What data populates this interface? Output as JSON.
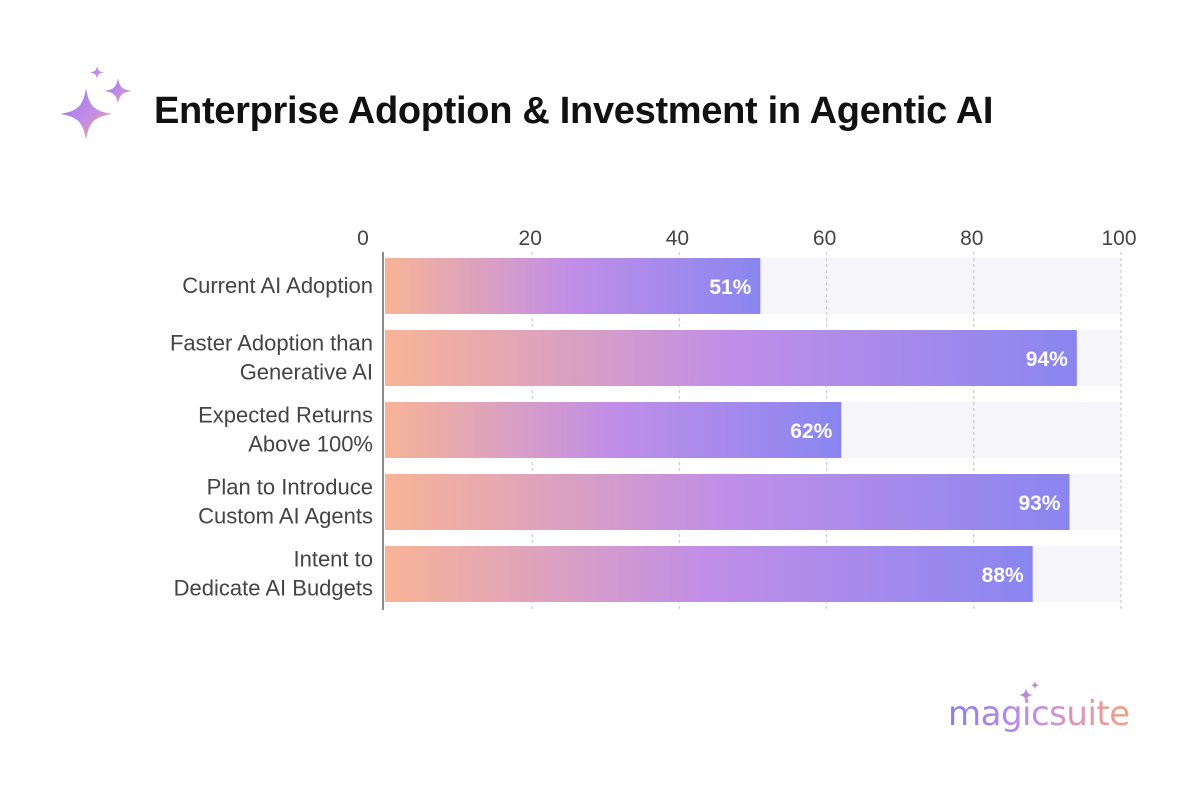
{
  "header": {
    "title": "Enterprise Adoption & Investment in Agentic AI",
    "icon": "sparkle-icon"
  },
  "brand": {
    "name": "magicsuite",
    "icon": "sparkle-icon"
  },
  "colors": {
    "bar_gradient": [
      "#f8b496",
      "#c08ee8",
      "#8a86f0"
    ],
    "track": "#f5f5fa",
    "grid": "#cfcfd6",
    "label": "#444444",
    "value_label": "#ffffff"
  },
  "chart_data": {
    "type": "bar",
    "orientation": "horizontal",
    "categories": [
      [
        "Current AI Adoption"
      ],
      [
        "Faster Adoption than",
        "Generative AI"
      ],
      [
        "Expected Returns",
        "Above 100%"
      ],
      [
        "Plan to Introduce",
        "Custom AI Agents"
      ],
      [
        "Intent to",
        "Dedicate AI Budgets"
      ]
    ],
    "values": [
      51,
      94,
      62,
      93,
      88
    ],
    "value_labels": [
      "51%",
      "94%",
      "62%",
      "93%",
      "88%"
    ],
    "xlim": [
      0,
      100
    ],
    "xticks": [
      0,
      20,
      40,
      60,
      80,
      100
    ],
    "xtick_labels": [
      "0",
      "20",
      "40",
      "60",
      "80",
      "100"
    ],
    "axis_position": "top",
    "grid": true,
    "legend": "none",
    "title": "Enterprise Adoption & Investment in Agentic AI",
    "xlabel": "",
    "ylabel": ""
  }
}
